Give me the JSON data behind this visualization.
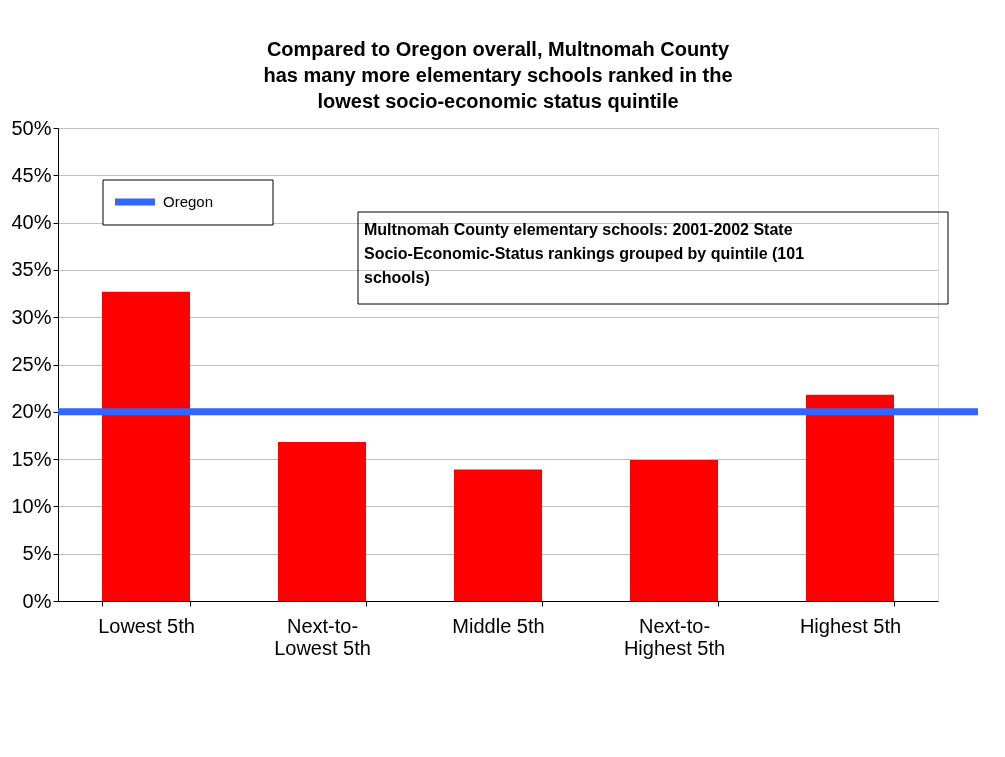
{
  "chart_data": {
    "type": "bar",
    "title": "Compared to Oregon overall, Multnomah County has many more elementary schools ranked in the lowest socio-economic status quintile",
    "categories": [
      "Lowest 5th",
      "Next-to-Lowest 5th",
      "Middle 5th",
      "Next-to-Highest 5th",
      "Highest 5th"
    ],
    "series": [
      {
        "color": "#ff0000",
        "values": [
          32.7,
          16.8,
          13.9,
          14.9,
          21.8
        ]
      }
    ],
    "ref_lines": [
      {
        "axis": "y",
        "value": 20,
        "label": "Oregon",
        "color": "#3366ff"
      }
    ],
    "annotations": [
      "Multnomah County elementary schools:  2001-2002 State Socio-Economic-Status rankings grouped by quintile (101 schools)"
    ],
    "ylim": [
      0,
      50
    ],
    "yticks": [
      {
        "value": 0,
        "label": "0%"
      },
      {
        "value": 5,
        "label": "5%"
      },
      {
        "value": 10,
        "label": "10%"
      },
      {
        "value": 15,
        "label": "15%"
      },
      {
        "value": 20,
        "label": "20%"
      },
      {
        "value": 25,
        "label": "25%"
      },
      {
        "value": 30,
        "label": "30%"
      },
      {
        "value": 35,
        "label": "35%"
      },
      {
        "value": 40,
        "label": "40%"
      },
      {
        "value": 45,
        "label": "45%"
      },
      {
        "value": 50,
        "label": "50%"
      }
    ],
    "grid": "y",
    "legend": "top left"
  }
}
